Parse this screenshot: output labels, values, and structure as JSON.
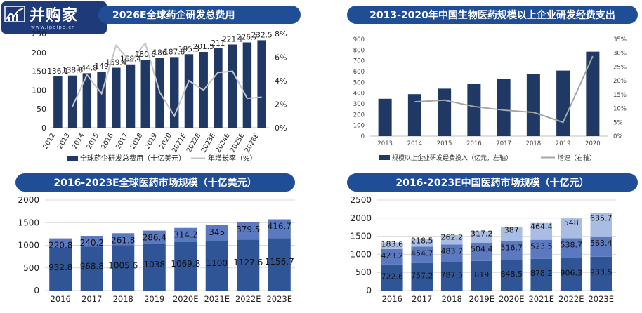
{
  "watermark": {
    "brand": "并购家",
    "url": "www.ipoipo.cn",
    "icon": "chart-logo-icon"
  },
  "colors": {
    "banner": "#1f4e96",
    "bar_dark": "#1f3864",
    "bar_lower": "#2f5597",
    "bar_mid": "#5b79c1",
    "bar_top": "#a9bde3",
    "line_gray": "#c4c4c4",
    "axis": "#bfbfbf"
  },
  "chart_data": [
    {
      "id": "global-rnd",
      "type": "bar",
      "title": "2026E全球药企研发总费用",
      "categories": [
        "2012",
        "2013",
        "2014",
        "2015",
        "2016",
        "2017",
        "2018",
        "2019",
        "2020",
        "2021E",
        "2022E",
        "2023E",
        "2024E",
        "2025E",
        "2026E"
      ],
      "series": [
        {
          "name": "全球药企研发总费用（十亿美元）",
          "values": [
            136.1,
            138.6,
            144.8,
            149,
            159.4,
            168.4,
            180.6,
            186,
            187.8,
            195.3,
            201.5,
            211,
            221.1,
            226.7,
            232.5
          ],
          "axis": "left"
        },
        {
          "name": "年增长率（%）",
          "type": "line",
          "values": [
            null,
            1.8,
            4.5,
            2.9,
            7.0,
            5.6,
            7.2,
            3.0,
            1.0,
            4.0,
            3.2,
            4.7,
            4.8,
            2.5,
            2.6
          ],
          "axis": "right"
        }
      ],
      "y_ticks": [
        "0",
        "50",
        "100",
        "150",
        "200",
        "250"
      ],
      "y2_ticks": [
        "0%",
        "2%",
        "4%",
        "6%",
        "8%"
      ],
      "ylim": [
        0,
        250
      ],
      "y2lim": [
        0,
        8
      ],
      "legend": [
        "全球药企研发总费用（十亿美元）",
        "年增长率（%）"
      ],
      "legend_position": "bottom"
    },
    {
      "id": "china-bio-rnd",
      "type": "bar",
      "title": "2013-2020年中国生物医药规模以上企业研发经费支出",
      "categories": [
        "2013",
        "2014",
        "2015",
        "2016",
        "2017",
        "2018",
        "2019",
        "2020"
      ],
      "series": [
        {
          "name": "规模以上企业研发经费投入（亿元，左轴）",
          "values": [
            347,
            390,
            441,
            488,
            534,
            580,
            609,
            785
          ],
          "axis": "left"
        },
        {
          "name": "增速（右轴）",
          "type": "line",
          "values": [
            null,
            12.4,
            13.0,
            10.7,
            9.4,
            8.6,
            5.0,
            28.9
          ],
          "axis": "right"
        }
      ],
      "y_ticks": [
        "0",
        "100",
        "200",
        "300",
        "400",
        "500",
        "600",
        "700",
        "800",
        "900"
      ],
      "y2_ticks": [
        "0%",
        "5%",
        "10%",
        "15%",
        "20%",
        "25%",
        "30%",
        "35%"
      ],
      "ylim": [
        0,
        900
      ],
      "y2lim": [
        0,
        35
      ],
      "legend": [
        "规模以上企业研发经费投入（亿元，左轴）",
        "增速（右轴）"
      ],
      "legend_position": "bottom"
    },
    {
      "id": "global-market",
      "type": "bar",
      "stacked": true,
      "title": "2016-2023E全球医药市场规模（十亿美元）",
      "categories": [
        "2016",
        "2017",
        "2018",
        "2019",
        "2020E",
        "2021E",
        "2022E",
        "2023E"
      ],
      "series": [
        {
          "values": [
            932.8,
            968.8,
            1005.6,
            1038.0,
            1069.8,
            1100.0,
            1127.6,
            1156.7
          ]
        },
        {
          "values": [
            220.8,
            240.2,
            261.8,
            286.4,
            314.2,
            345.0,
            379.5,
            416.7
          ]
        }
      ],
      "y_ticks": [
        "0",
        "500",
        "1000",
        "1500",
        "2000"
      ],
      "ylim": [
        0,
        2000
      ]
    },
    {
      "id": "china-market",
      "type": "bar",
      "stacked": true,
      "title": "2016-2023E中国医药市场规模（十亿元）",
      "categories": [
        "2016",
        "2017",
        "2018",
        "2019E",
        "2020E",
        "2021E",
        "2022E",
        "2023E"
      ],
      "series": [
        {
          "values": [
            722.6,
            757.2,
            787.5,
            819,
            848.5,
            878.2,
            906.3,
            933.5
          ]
        },
        {
          "values": [
            423.2,
            454.7,
            483.7,
            504.4,
            516.7,
            523.5,
            538.7,
            563.4
          ]
        },
        {
          "values": [
            183.6,
            218.5,
            262.2,
            317.2,
            387,
            464.4,
            548,
            635.7
          ]
        }
      ],
      "y_ticks": [
        "0",
        "500",
        "1000",
        "1500",
        "2000",
        "2500"
      ],
      "ylim": [
        0,
        2500
      ]
    }
  ]
}
